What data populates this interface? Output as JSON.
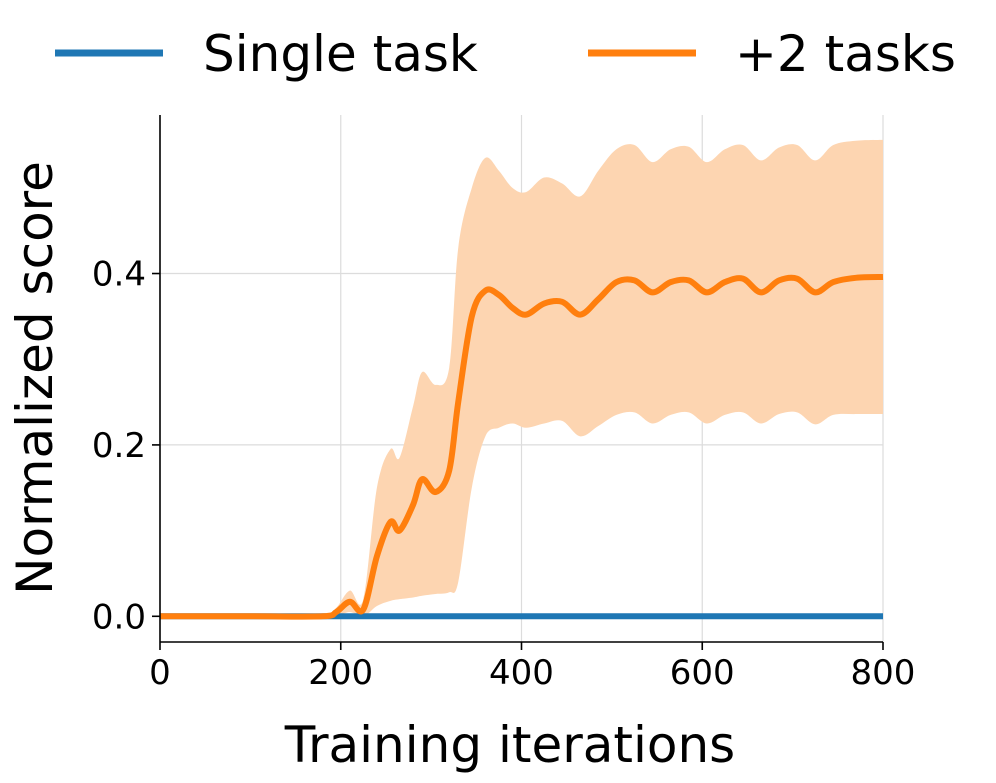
{
  "chart_data": {
    "type": "line",
    "xlabel": "Training iterations",
    "ylabel": "Normalized score",
    "xlim": [
      0,
      800
    ],
    "ylim": [
      -0.03,
      0.585
    ],
    "xticks": [
      0,
      200,
      400,
      600,
      800
    ],
    "xtick_labels": [
      "0",
      "200",
      "400",
      "600",
      "800"
    ],
    "yticks": [
      0.0,
      0.2,
      0.4
    ],
    "ytick_labels": [
      "0.0",
      "0.2",
      "0.4"
    ],
    "grid": true,
    "legend_position": "top",
    "series": [
      {
        "name": "Single task",
        "color": "#1f77b4",
        "x": [
          0,
          800
        ],
        "y": [
          0.0,
          0.0
        ]
      },
      {
        "name": "+2 tasks",
        "color": "#ff7f0e",
        "band_color": "#fdd5b1",
        "x": [
          0,
          100,
          180,
          195,
          210,
          225,
          240,
          255,
          265,
          280,
          290,
          305,
          320,
          330,
          345,
          360,
          375,
          390,
          405,
          425,
          445,
          465,
          485,
          505,
          525,
          545,
          565,
          585,
          605,
          625,
          645,
          665,
          685,
          705,
          725,
          745,
          770,
          800
        ],
        "y": [
          0.0,
          0.0,
          0.0,
          0.005,
          0.017,
          0.008,
          0.07,
          0.11,
          0.1,
          0.13,
          0.16,
          0.145,
          0.17,
          0.25,
          0.35,
          0.38,
          0.375,
          0.36,
          0.352,
          0.365,
          0.367,
          0.352,
          0.37,
          0.39,
          0.392,
          0.378,
          0.39,
          0.392,
          0.378,
          0.39,
          0.394,
          0.378,
          0.392,
          0.394,
          0.378,
          0.39,
          0.395,
          0.396
        ],
        "upper": [
          0.0,
          0.0,
          0.0,
          0.01,
          0.03,
          0.02,
          0.15,
          0.195,
          0.185,
          0.245,
          0.285,
          0.27,
          0.29,
          0.43,
          0.5,
          0.535,
          0.52,
          0.5,
          0.495,
          0.512,
          0.505,
          0.49,
          0.52,
          0.545,
          0.55,
          0.53,
          0.545,
          0.548,
          0.53,
          0.545,
          0.55,
          0.532,
          0.547,
          0.55,
          0.532,
          0.55,
          0.555,
          0.556
        ],
        "lower": [
          0.0,
          0.0,
          0.0,
          0.0,
          0.005,
          0.0,
          0.012,
          0.018,
          0.02,
          0.022,
          0.024,
          0.026,
          0.028,
          0.04,
          0.15,
          0.21,
          0.22,
          0.225,
          0.22,
          0.225,
          0.228,
          0.21,
          0.222,
          0.235,
          0.238,
          0.225,
          0.235,
          0.238,
          0.225,
          0.235,
          0.238,
          0.225,
          0.236,
          0.238,
          0.224,
          0.235,
          0.236,
          0.236
        ]
      }
    ]
  }
}
